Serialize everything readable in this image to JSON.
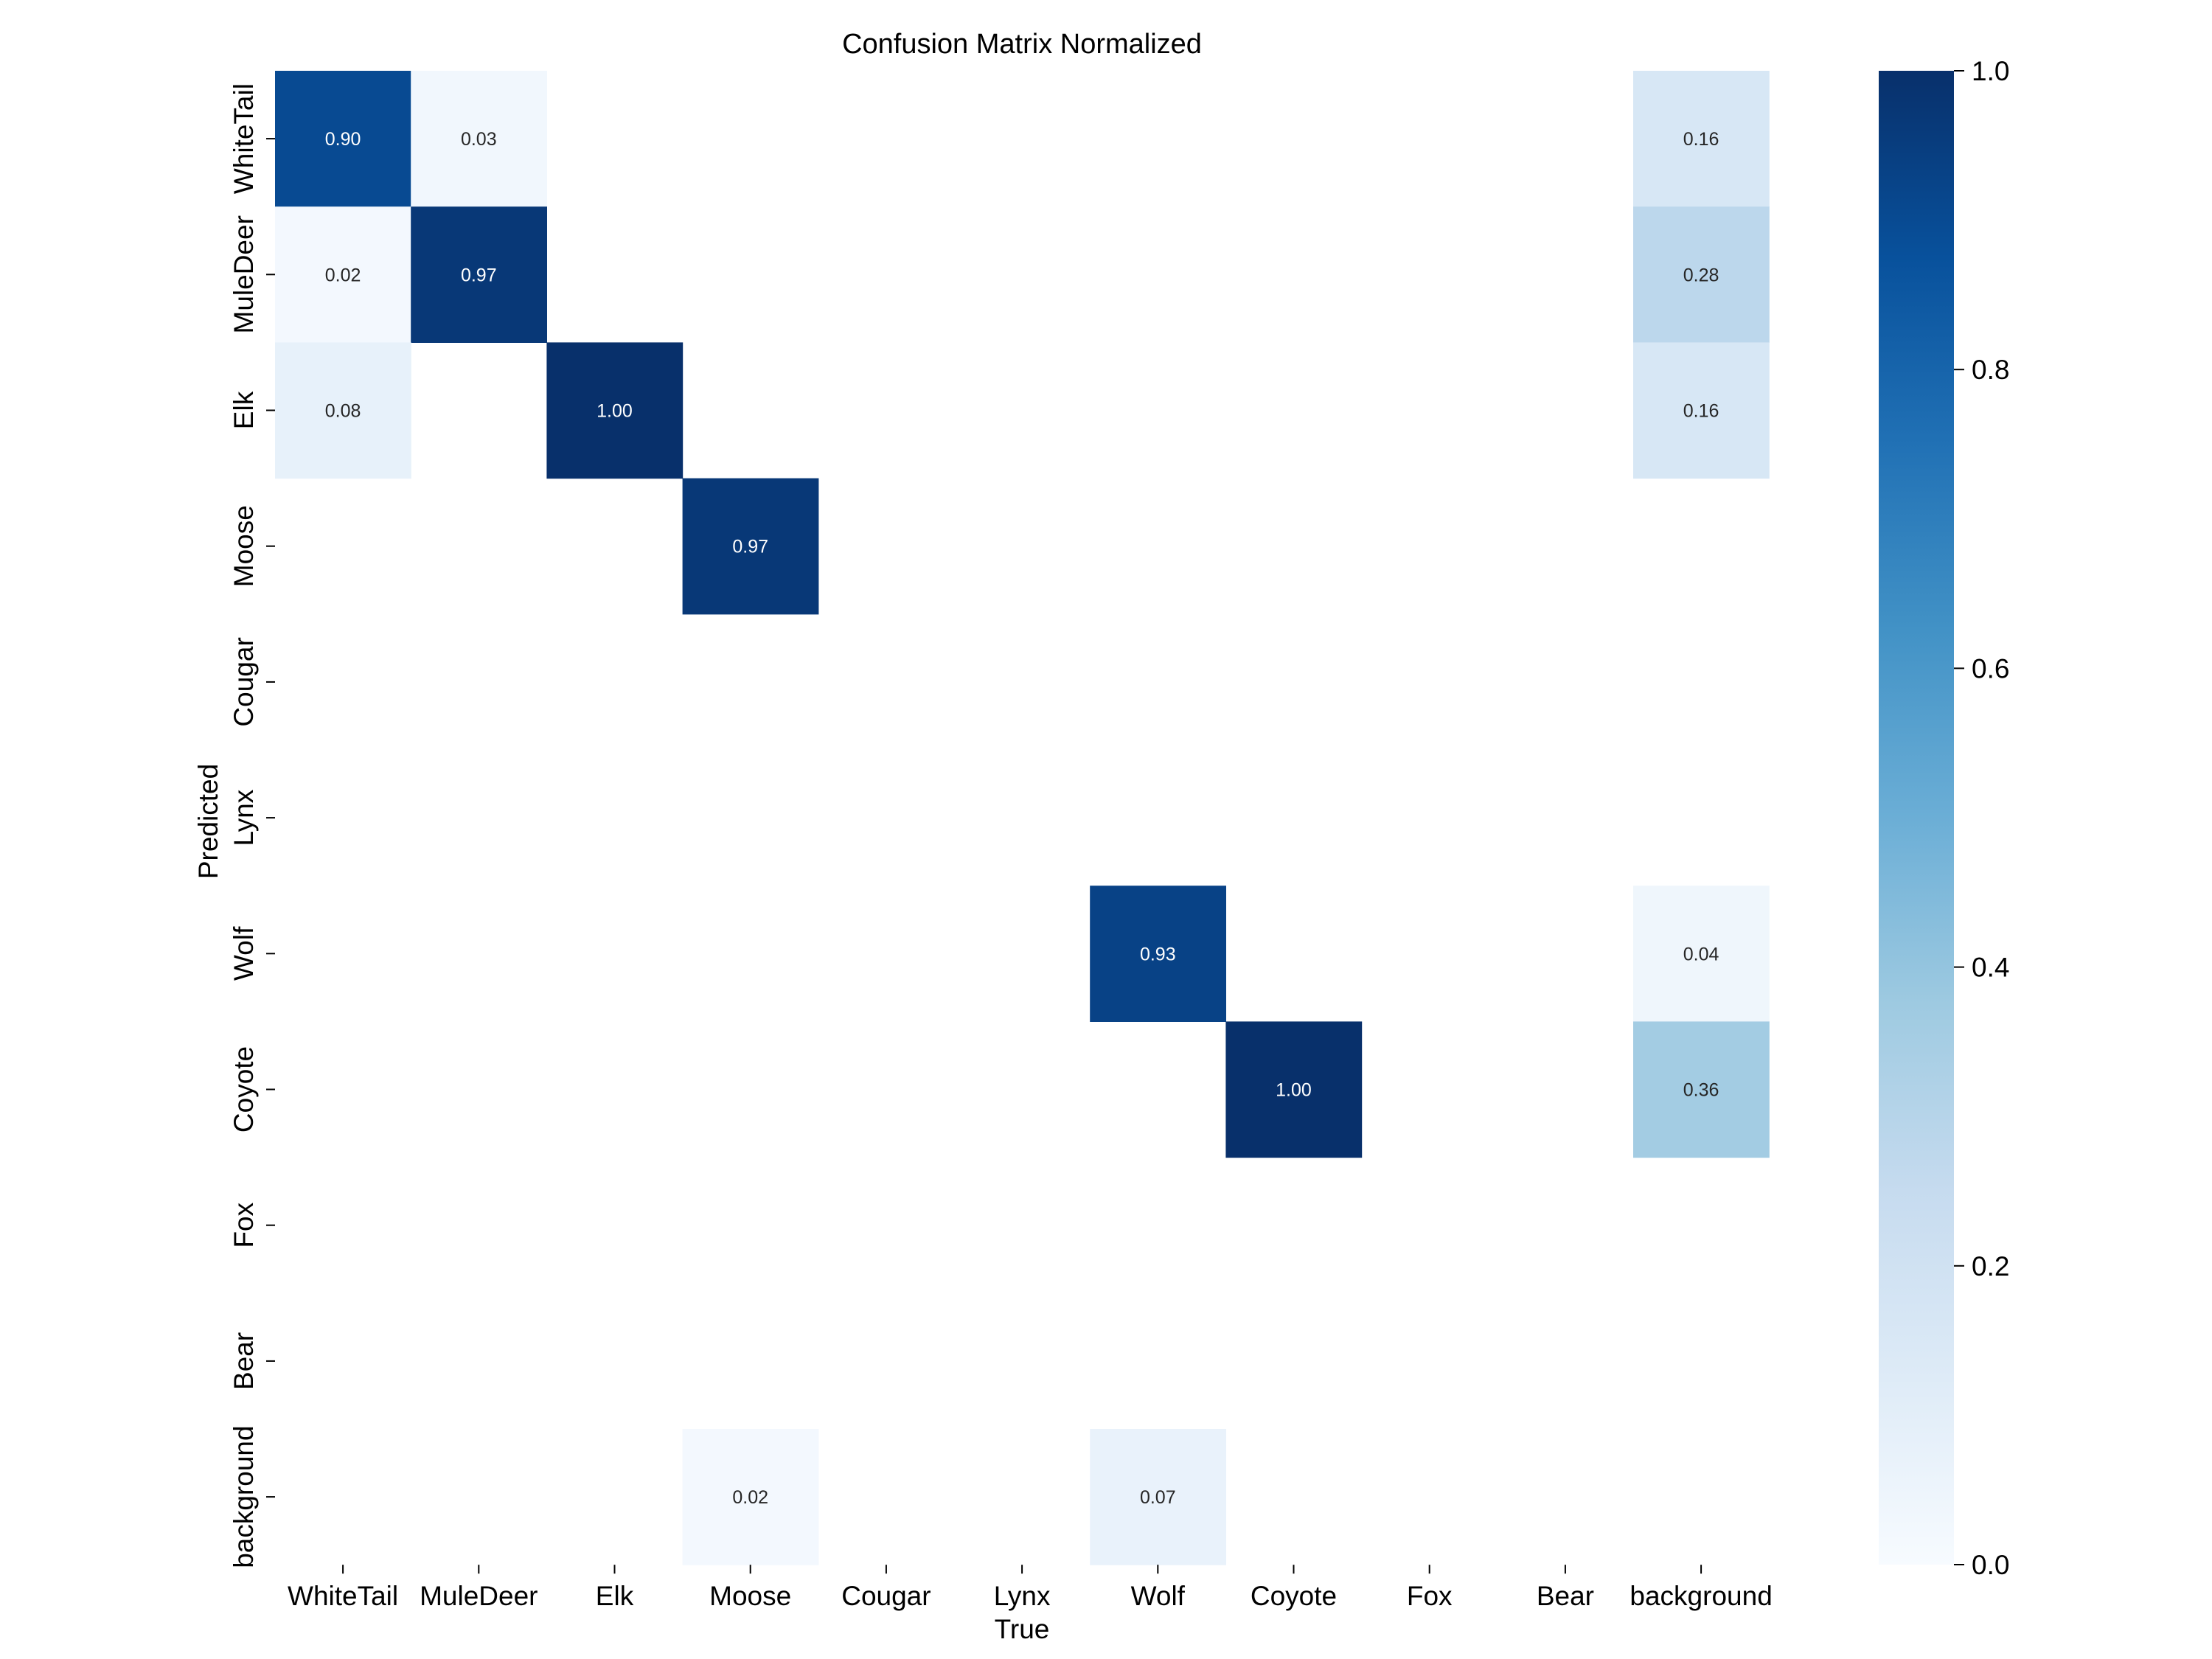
{
  "chart_data": {
    "type": "heatmap",
    "title": "Confusion Matrix Normalized",
    "xlabel": "True",
    "ylabel": "Predicted",
    "x_categories": [
      "WhiteTail",
      "MuleDeer",
      "Elk",
      "Moose",
      "Cougar",
      "Lynx",
      "Wolf",
      "Coyote",
      "Fox",
      "Bear",
      "background"
    ],
    "y_categories": [
      "WhiteTail",
      "MuleDeer",
      "Elk",
      "Moose",
      "Cougar",
      "Lynx",
      "Wolf",
      "Coyote",
      "Fox",
      "Bear",
      "background"
    ],
    "values": [
      [
        0.9,
        0.03,
        null,
        null,
        null,
        null,
        null,
        null,
        null,
        null,
        0.16
      ],
      [
        0.02,
        0.97,
        null,
        null,
        null,
        null,
        null,
        null,
        null,
        null,
        0.28
      ],
      [
        0.08,
        null,
        1.0,
        null,
        null,
        null,
        null,
        null,
        null,
        null,
        0.16
      ],
      [
        null,
        null,
        null,
        0.97,
        null,
        null,
        null,
        null,
        null,
        null,
        null
      ],
      [
        null,
        null,
        null,
        null,
        null,
        null,
        null,
        null,
        null,
        null,
        null
      ],
      [
        null,
        null,
        null,
        null,
        null,
        null,
        null,
        null,
        null,
        null,
        null
      ],
      [
        null,
        null,
        null,
        null,
        null,
        null,
        0.93,
        null,
        null,
        null,
        0.04
      ],
      [
        null,
        null,
        null,
        null,
        null,
        null,
        null,
        1.0,
        null,
        null,
        0.36
      ],
      [
        null,
        null,
        null,
        null,
        null,
        null,
        null,
        null,
        null,
        null,
        null
      ],
      [
        null,
        null,
        null,
        null,
        null,
        null,
        null,
        null,
        null,
        null,
        null
      ],
      [
        null,
        null,
        null,
        0.02,
        null,
        null,
        0.07,
        null,
        null,
        null,
        null
      ]
    ],
    "value_format": "0.00",
    "colorbar": {
      "min": 0.0,
      "max": 1.0,
      "ticks": [
        "0.0",
        "0.2",
        "0.4",
        "0.6",
        "0.8",
        "1.0"
      ],
      "colormap": "Blues"
    },
    "colors": {
      "low": "#f7fbff",
      "high": "#08306b"
    }
  }
}
